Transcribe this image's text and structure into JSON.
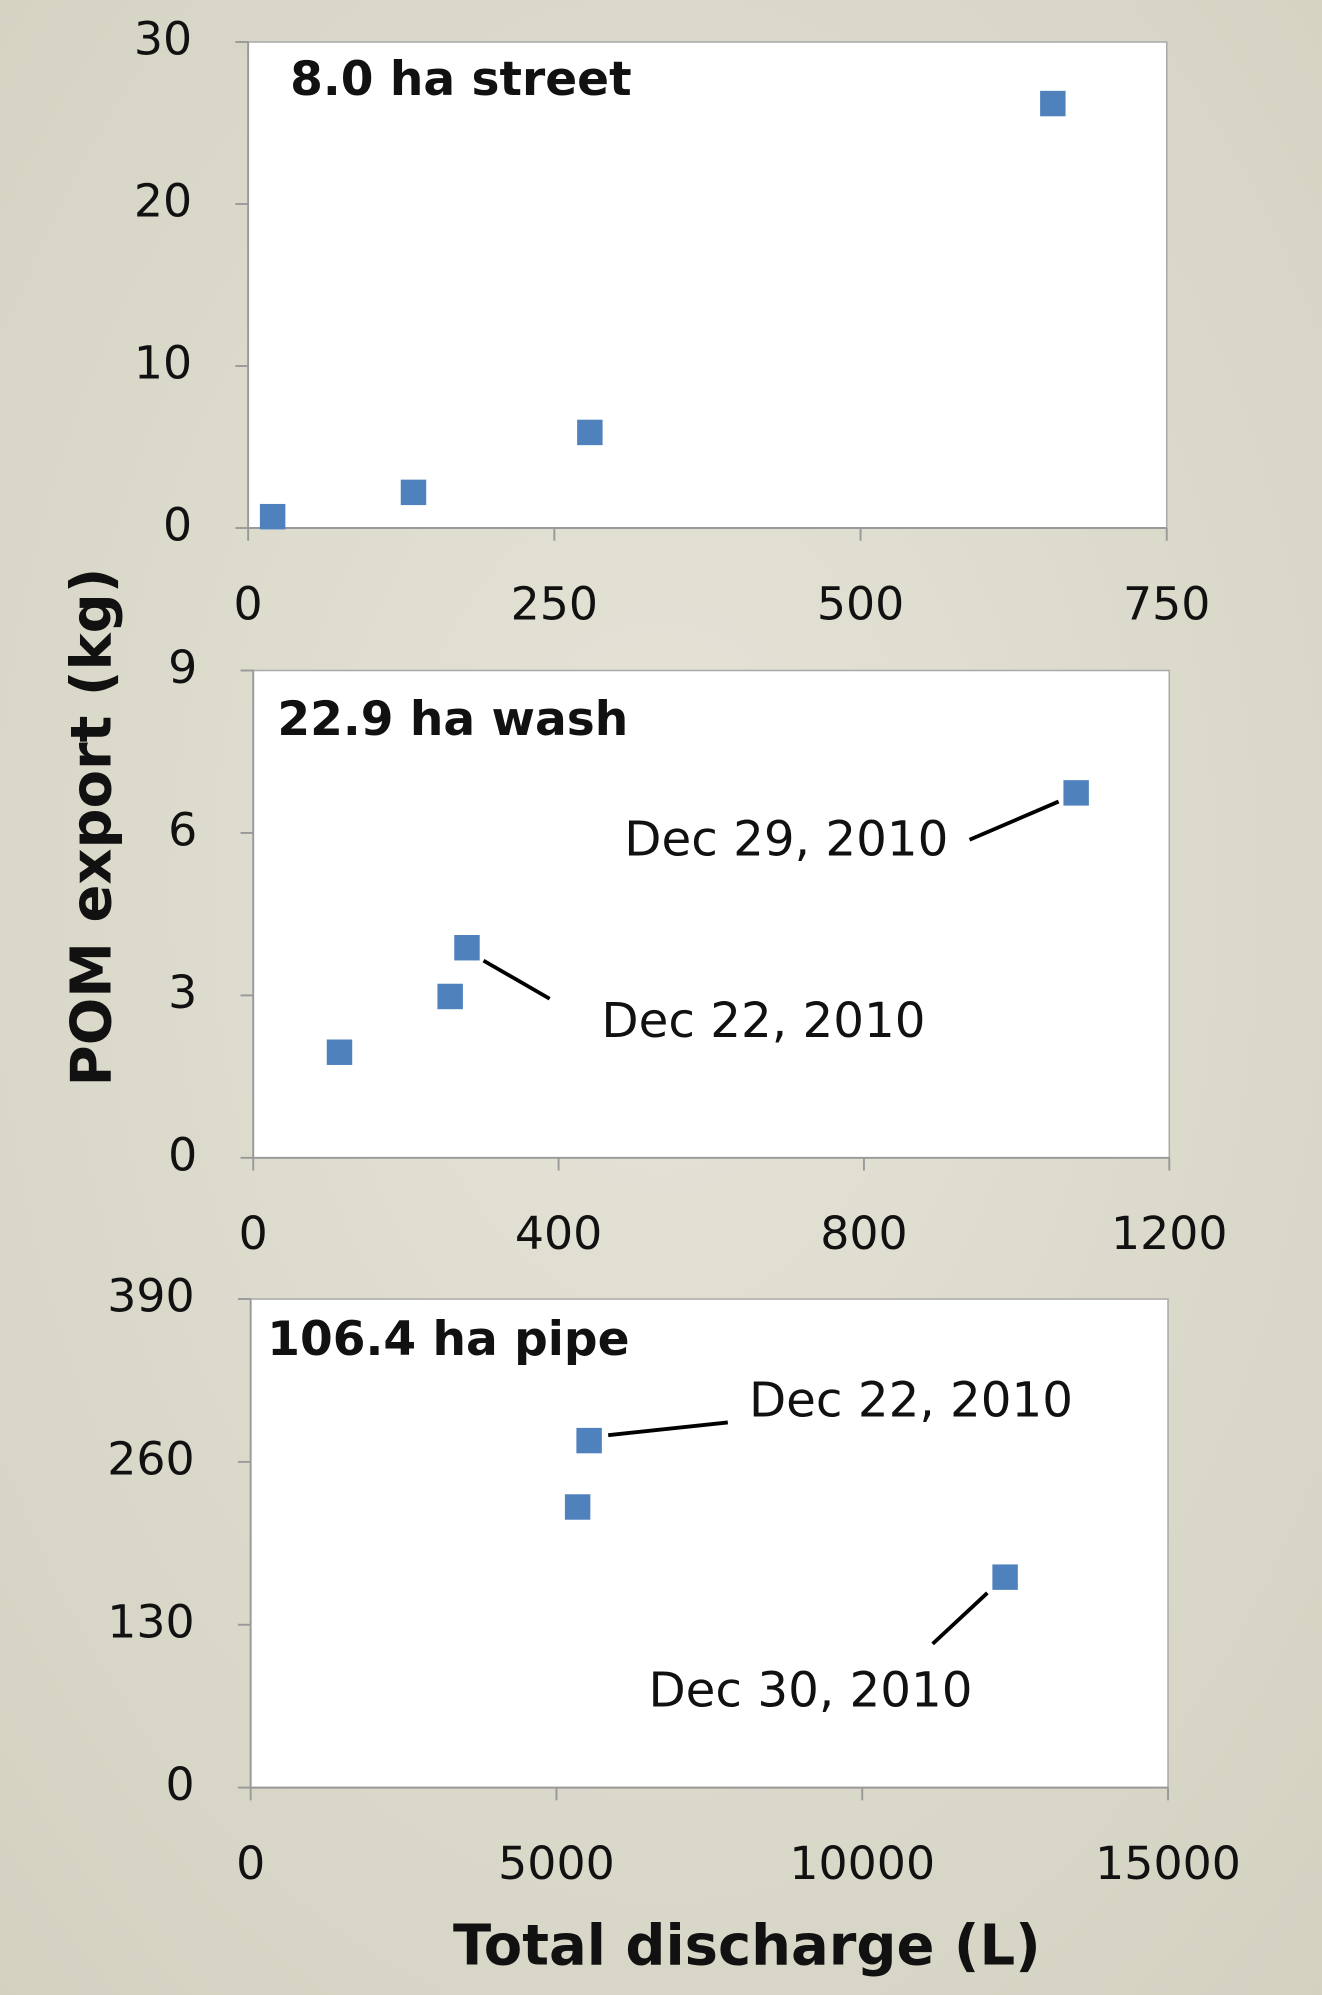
{
  "chart_data": [
    {
      "type": "scatter",
      "title": "8.0 ha street",
      "series": [
        {
          "color": "#4f81bd",
          "x": [
            20,
            135,
            279,
            657
          ],
          "values": [
            0.7,
            2.2,
            5.9,
            26.2
          ]
        }
      ],
      "xlim": [
        0,
        750
      ],
      "xticks": [
        0,
        250,
        500,
        750
      ],
      "ylim": [
        0,
        30
      ],
      "yticks": [
        0,
        10,
        20,
        30
      ]
    },
    {
      "type": "scatter",
      "title": "22.9 ha wash",
      "ylabel": "POM export (kg)",
      "series": [
        {
          "color": "#4f81bd",
          "x": [
            113,
            258,
            280,
            1078
          ],
          "values": [
            1.95,
            2.98,
            3.88,
            6.74
          ]
        }
      ],
      "annotations": [
        "Dec 29, 2010",
        "Dec 22, 2010"
      ],
      "xlim": [
        0,
        1200
      ],
      "xticks": [
        0,
        400,
        800,
        1200
      ],
      "ylim": [
        0,
        9
      ],
      "yticks": [
        0,
        3,
        6,
        9
      ]
    },
    {
      "type": "scatter",
      "title": "106.4 ha pipe",
      "xlabel": "Total discharge (L)",
      "series": [
        {
          "color": "#4f81bd",
          "x": [
            5534,
            5346,
            12336
          ],
          "values": [
            277,
            224,
            168
          ]
        }
      ],
      "annotations": [
        "Dec 22, 2010",
        "Dec 30, 2010"
      ],
      "xlim": [
        0,
        15000
      ],
      "xticks": [
        0,
        5000,
        10000,
        15000
      ],
      "ylim": [
        0,
        390
      ],
      "yticks": [
        0,
        130,
        260,
        390
      ]
    }
  ]
}
